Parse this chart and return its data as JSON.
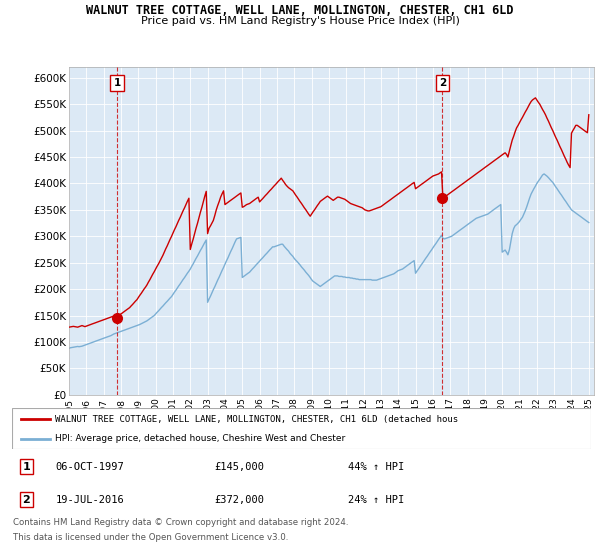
{
  "title": "WALNUT TREE COTTAGE, WELL LANE, MOLLINGTON, CHESTER, CH1 6LD",
  "subtitle": "Price paid vs. HM Land Registry's House Price Index (HPI)",
  "ylim": [
    0,
    620000
  ],
  "yticks": [
    0,
    50000,
    100000,
    150000,
    200000,
    250000,
    300000,
    350000,
    400000,
    450000,
    500000,
    550000,
    600000
  ],
  "ytick_labels": [
    "£0",
    "£50K",
    "£100K",
    "£150K",
    "£200K",
    "£250K",
    "£300K",
    "£350K",
    "£400K",
    "£450K",
    "£500K",
    "£550K",
    "£600K"
  ],
  "sale1_date": 1997.77,
  "sale1_price": 145000,
  "sale1_label": "1",
  "sale2_date": 2016.55,
  "sale2_price": 372000,
  "sale2_label": "2",
  "legend_entry1": "WALNUT TREE COTTAGE, WELL LANE, MOLLINGTON, CHESTER, CH1 6LD (detached hous",
  "legend_entry2": "HPI: Average price, detached house, Cheshire West and Chester",
  "table_row1": [
    "1",
    "06-OCT-1997",
    "£145,000",
    "44% ↑ HPI"
  ],
  "table_row2": [
    "2",
    "19-JUL-2016",
    "£372,000",
    "24% ↑ HPI"
  ],
  "footer1": "Contains HM Land Registry data © Crown copyright and database right 2024.",
  "footer2": "This data is licensed under the Open Government Licence v3.0.",
  "red_color": "#cc0000",
  "blue_color": "#7bafd4",
  "bg_color": "#dce9f5",
  "hpi_x": [
    1995.0,
    1995.08,
    1995.17,
    1995.25,
    1995.33,
    1995.42,
    1995.5,
    1995.58,
    1995.67,
    1995.75,
    1995.83,
    1995.92,
    1996.0,
    1996.08,
    1996.17,
    1996.25,
    1996.33,
    1996.42,
    1996.5,
    1996.58,
    1996.67,
    1996.75,
    1996.83,
    1996.92,
    1997.0,
    1997.08,
    1997.17,
    1997.25,
    1997.33,
    1997.42,
    1997.5,
    1997.58,
    1997.67,
    1997.75,
    1997.83,
    1997.92,
    1998.0,
    1998.08,
    1998.17,
    1998.25,
    1998.33,
    1998.42,
    1998.5,
    1998.58,
    1998.67,
    1998.75,
    1998.83,
    1998.92,
    1999.0,
    1999.08,
    1999.17,
    1999.25,
    1999.33,
    1999.42,
    1999.5,
    1999.58,
    1999.67,
    1999.75,
    1999.83,
    1999.92,
    2000.0,
    2000.08,
    2000.17,
    2000.25,
    2000.33,
    2000.42,
    2000.5,
    2000.58,
    2000.67,
    2000.75,
    2000.83,
    2000.92,
    2001.0,
    2001.08,
    2001.17,
    2001.25,
    2001.33,
    2001.42,
    2001.5,
    2001.58,
    2001.67,
    2001.75,
    2001.83,
    2001.92,
    2002.0,
    2002.08,
    2002.17,
    2002.25,
    2002.33,
    2002.42,
    2002.5,
    2002.58,
    2002.67,
    2002.75,
    2002.83,
    2002.92,
    2003.0,
    2003.08,
    2003.17,
    2003.25,
    2003.33,
    2003.42,
    2003.5,
    2003.58,
    2003.67,
    2003.75,
    2003.83,
    2003.92,
    2004.0,
    2004.08,
    2004.17,
    2004.25,
    2004.33,
    2004.42,
    2004.5,
    2004.58,
    2004.67,
    2004.75,
    2004.83,
    2004.92,
    2005.0,
    2005.08,
    2005.17,
    2005.25,
    2005.33,
    2005.42,
    2005.5,
    2005.58,
    2005.67,
    2005.75,
    2005.83,
    2005.92,
    2006.0,
    2006.08,
    2006.17,
    2006.25,
    2006.33,
    2006.42,
    2006.5,
    2006.58,
    2006.67,
    2006.75,
    2006.83,
    2006.92,
    2007.0,
    2007.08,
    2007.17,
    2007.25,
    2007.33,
    2007.42,
    2007.5,
    2007.58,
    2007.67,
    2007.75,
    2007.83,
    2007.92,
    2008.0,
    2008.08,
    2008.17,
    2008.25,
    2008.33,
    2008.42,
    2008.5,
    2008.58,
    2008.67,
    2008.75,
    2008.83,
    2008.92,
    2009.0,
    2009.08,
    2009.17,
    2009.25,
    2009.33,
    2009.42,
    2009.5,
    2009.58,
    2009.67,
    2009.75,
    2009.83,
    2009.92,
    2010.0,
    2010.08,
    2010.17,
    2010.25,
    2010.33,
    2010.42,
    2010.5,
    2010.58,
    2010.67,
    2010.75,
    2010.83,
    2010.92,
    2011.0,
    2011.08,
    2011.17,
    2011.25,
    2011.33,
    2011.42,
    2011.5,
    2011.58,
    2011.67,
    2011.75,
    2011.83,
    2011.92,
    2012.0,
    2012.08,
    2012.17,
    2012.25,
    2012.33,
    2012.42,
    2012.5,
    2012.58,
    2012.67,
    2012.75,
    2012.83,
    2012.92,
    2013.0,
    2013.08,
    2013.17,
    2013.25,
    2013.33,
    2013.42,
    2013.5,
    2013.58,
    2013.67,
    2013.75,
    2013.83,
    2013.92,
    2014.0,
    2014.08,
    2014.17,
    2014.25,
    2014.33,
    2014.42,
    2014.5,
    2014.58,
    2014.67,
    2014.75,
    2014.83,
    2014.92,
    2015.0,
    2015.08,
    2015.17,
    2015.25,
    2015.33,
    2015.42,
    2015.5,
    2015.58,
    2015.67,
    2015.75,
    2015.83,
    2015.92,
    2016.0,
    2016.08,
    2016.17,
    2016.25,
    2016.33,
    2016.42,
    2016.5,
    2016.58,
    2016.67,
    2016.75,
    2016.83,
    2016.92,
    2017.0,
    2017.08,
    2017.17,
    2017.25,
    2017.33,
    2017.42,
    2017.5,
    2017.58,
    2017.67,
    2017.75,
    2017.83,
    2017.92,
    2018.0,
    2018.08,
    2018.17,
    2018.25,
    2018.33,
    2018.42,
    2018.5,
    2018.58,
    2018.67,
    2018.75,
    2018.83,
    2018.92,
    2019.0,
    2019.08,
    2019.17,
    2019.25,
    2019.33,
    2019.42,
    2019.5,
    2019.58,
    2019.67,
    2019.75,
    2019.83,
    2019.92,
    2020.0,
    2020.08,
    2020.17,
    2020.25,
    2020.33,
    2020.42,
    2020.5,
    2020.58,
    2020.67,
    2020.75,
    2020.83,
    2020.92,
    2021.0,
    2021.08,
    2021.17,
    2021.25,
    2021.33,
    2021.42,
    2021.5,
    2021.58,
    2021.67,
    2021.75,
    2021.83,
    2021.92,
    2022.0,
    2022.08,
    2022.17,
    2022.25,
    2022.33,
    2022.42,
    2022.5,
    2022.58,
    2022.67,
    2022.75,
    2022.83,
    2022.92,
    2023.0,
    2023.08,
    2023.17,
    2023.25,
    2023.33,
    2023.42,
    2023.5,
    2023.58,
    2023.67,
    2023.75,
    2023.83,
    2023.92,
    2024.0,
    2024.08,
    2024.17,
    2024.25,
    2024.33,
    2024.42,
    2024.5,
    2024.58,
    2024.67,
    2024.75,
    2024.83,
    2024.92,
    2025.0
  ],
  "hpi_y": [
    88000,
    89000,
    89500,
    90000,
    90500,
    91000,
    91500,
    91000,
    91500,
    92000,
    93000,
    94000,
    95000,
    96000,
    97000,
    98000,
    99000,
    100000,
    101000,
    102000,
    103000,
    104000,
    105000,
    106000,
    107000,
    108000,
    109000,
    110000,
    111000,
    112000,
    113500,
    115000,
    116000,
    117000,
    118000,
    119000,
    120000,
    121000,
    122000,
    123000,
    124000,
    125000,
    126000,
    127000,
    128000,
    129000,
    130000,
    131000,
    132000,
    133000,
    134500,
    136000,
    137000,
    138500,
    140000,
    142000,
    144000,
    146000,
    148000,
    150000,
    153000,
    156000,
    159000,
    162000,
    165000,
    168000,
    171000,
    174000,
    177000,
    180000,
    183000,
    186000,
    190000,
    194000,
    198000,
    202000,
    206000,
    210000,
    214000,
    218000,
    222000,
    226000,
    230000,
    234000,
    238000,
    243000,
    248000,
    253000,
    258000,
    263000,
    268000,
    273000,
    278000,
    283000,
    288000,
    293000,
    175000,
    181000,
    187000,
    193000,
    199000,
    205000,
    211000,
    217000,
    223000,
    229000,
    235000,
    241000,
    247000,
    253000,
    259000,
    265000,
    271000,
    277000,
    283000,
    289000,
    295000,
    296000,
    297000,
    298000,
    222000,
    224000,
    226000,
    228000,
    230000,
    232000,
    235000,
    238000,
    241000,
    244000,
    247000,
    250000,
    253000,
    256000,
    259000,
    262000,
    265000,
    268000,
    271000,
    274000,
    277000,
    280000,
    280000,
    281000,
    282000,
    283000,
    284000,
    285000,
    285000,
    281000,
    278000,
    275000,
    272000,
    268000,
    265000,
    262000,
    258000,
    255000,
    252000,
    249000,
    246000,
    242000,
    239000,
    236000,
    232000,
    229000,
    226000,
    222000,
    218000,
    215000,
    213000,
    211000,
    209000,
    207000,
    205000,
    207000,
    209000,
    211000,
    213000,
    215000,
    217000,
    219000,
    221000,
    223000,
    225000,
    225000,
    225000,
    224000,
    224000,
    224000,
    223000,
    223000,
    222000,
    222000,
    222000,
    221000,
    221000,
    220000,
    220000,
    219000,
    219000,
    218000,
    218000,
    218000,
    218000,
    218000,
    218000,
    218000,
    218000,
    218000,
    217000,
    217000,
    217000,
    217000,
    218000,
    219000,
    220000,
    221000,
    222000,
    223000,
    224000,
    225000,
    226000,
    227000,
    228000,
    229000,
    231000,
    233000,
    235000,
    236000,
    237000,
    238000,
    240000,
    242000,
    244000,
    246000,
    248000,
    250000,
    252000,
    254000,
    230000,
    234000,
    238000,
    242000,
    246000,
    250000,
    254000,
    258000,
    262000,
    266000,
    270000,
    274000,
    278000,
    282000,
    286000,
    290000,
    294000,
    298000,
    302000,
    296000,
    295000,
    296000,
    297000,
    298000,
    299000,
    300000,
    302000,
    304000,
    306000,
    308000,
    310000,
    312000,
    314000,
    316000,
    318000,
    320000,
    322000,
    324000,
    326000,
    328000,
    330000,
    332000,
    334000,
    335000,
    336000,
    337000,
    338000,
    339000,
    340000,
    341000,
    342000,
    344000,
    346000,
    348000,
    350000,
    352000,
    354000,
    356000,
    358000,
    360000,
    270000,
    272000,
    274000,
    270000,
    265000,
    275000,
    290000,
    305000,
    315000,
    320000,
    322000,
    325000,
    328000,
    332000,
    336000,
    342000,
    348000,
    356000,
    364000,
    372000,
    380000,
    385000,
    390000,
    395000,
    400000,
    404000,
    408000,
    412000,
    416000,
    418000,
    416000,
    414000,
    411000,
    408000,
    405000,
    402000,
    398000,
    394000,
    390000,
    386000,
    382000,
    378000,
    374000,
    370000,
    366000,
    362000,
    358000,
    354000,
    350000,
    348000,
    346000,
    344000,
    342000,
    340000,
    338000,
    336000,
    334000,
    332000,
    330000,
    328000,
    326000
  ],
  "red_x": [
    1995.0,
    1995.08,
    1995.17,
    1995.25,
    1995.33,
    1995.42,
    1995.5,
    1995.58,
    1995.67,
    1995.75,
    1995.83,
    1995.92,
    1996.0,
    1996.08,
    1996.17,
    1996.25,
    1996.33,
    1996.42,
    1996.5,
    1996.58,
    1996.67,
    1996.75,
    1996.83,
    1996.92,
    1997.0,
    1997.08,
    1997.17,
    1997.25,
    1997.33,
    1997.42,
    1997.5,
    1997.58,
    1997.67,
    1997.75,
    1997.83,
    1997.92,
    1998.0,
    1998.08,
    1998.17,
    1998.25,
    1998.33,
    1998.42,
    1998.5,
    1998.58,
    1998.67,
    1998.75,
    1998.83,
    1998.92,
    1999.0,
    1999.08,
    1999.17,
    1999.25,
    1999.33,
    1999.42,
    1999.5,
    1999.58,
    1999.67,
    1999.75,
    1999.83,
    1999.92,
    2000.0,
    2000.08,
    2000.17,
    2000.25,
    2000.33,
    2000.42,
    2000.5,
    2000.58,
    2000.67,
    2000.75,
    2000.83,
    2000.92,
    2001.0,
    2001.08,
    2001.17,
    2001.25,
    2001.33,
    2001.42,
    2001.5,
    2001.58,
    2001.67,
    2001.75,
    2001.83,
    2001.92,
    2002.0,
    2002.08,
    2002.17,
    2002.25,
    2002.33,
    2002.42,
    2002.5,
    2002.58,
    2002.67,
    2002.75,
    2002.83,
    2002.92,
    2003.0,
    2003.08,
    2003.17,
    2003.25,
    2003.33,
    2003.42,
    2003.5,
    2003.58,
    2003.67,
    2003.75,
    2003.83,
    2003.92,
    2004.0,
    2004.08,
    2004.17,
    2004.25,
    2004.33,
    2004.42,
    2004.5,
    2004.58,
    2004.67,
    2004.75,
    2004.83,
    2004.92,
    2005.0,
    2005.08,
    2005.17,
    2005.25,
    2005.33,
    2005.42,
    2005.5,
    2005.58,
    2005.67,
    2005.75,
    2005.83,
    2005.92,
    2006.0,
    2006.08,
    2006.17,
    2006.25,
    2006.33,
    2006.42,
    2006.5,
    2006.58,
    2006.67,
    2006.75,
    2006.83,
    2006.92,
    2007.0,
    2007.08,
    2007.17,
    2007.25,
    2007.33,
    2007.42,
    2007.5,
    2007.58,
    2007.67,
    2007.75,
    2007.83,
    2007.92,
    2008.0,
    2008.08,
    2008.17,
    2008.25,
    2008.33,
    2008.42,
    2008.5,
    2008.58,
    2008.67,
    2008.75,
    2008.83,
    2008.92,
    2009.0,
    2009.08,
    2009.17,
    2009.25,
    2009.33,
    2009.42,
    2009.5,
    2009.58,
    2009.67,
    2009.75,
    2009.83,
    2009.92,
    2010.0,
    2010.08,
    2010.17,
    2010.25,
    2010.33,
    2010.42,
    2010.5,
    2010.58,
    2010.67,
    2010.75,
    2010.83,
    2010.92,
    2011.0,
    2011.08,
    2011.17,
    2011.25,
    2011.33,
    2011.42,
    2011.5,
    2011.58,
    2011.67,
    2011.75,
    2011.83,
    2011.92,
    2012.0,
    2012.08,
    2012.17,
    2012.25,
    2012.33,
    2012.42,
    2012.5,
    2012.58,
    2012.67,
    2012.75,
    2012.83,
    2012.92,
    2013.0,
    2013.08,
    2013.17,
    2013.25,
    2013.33,
    2013.42,
    2013.5,
    2013.58,
    2013.67,
    2013.75,
    2013.83,
    2013.92,
    2014.0,
    2014.08,
    2014.17,
    2014.25,
    2014.33,
    2014.42,
    2014.5,
    2014.58,
    2014.67,
    2014.75,
    2014.83,
    2014.92,
    2015.0,
    2015.08,
    2015.17,
    2015.25,
    2015.33,
    2015.42,
    2015.5,
    2015.58,
    2015.67,
    2015.75,
    2015.83,
    2015.92,
    2016.0,
    2016.08,
    2016.17,
    2016.25,
    2016.33,
    2016.42,
    2016.5,
    2016.58,
    2016.67,
    2016.75,
    2016.83,
    2016.92,
    2017.0,
    2017.08,
    2017.17,
    2017.25,
    2017.33,
    2017.42,
    2017.5,
    2017.58,
    2017.67,
    2017.75,
    2017.83,
    2017.92,
    2018.0,
    2018.08,
    2018.17,
    2018.25,
    2018.33,
    2018.42,
    2018.5,
    2018.58,
    2018.67,
    2018.75,
    2018.83,
    2018.92,
    2019.0,
    2019.08,
    2019.17,
    2019.25,
    2019.33,
    2019.42,
    2019.5,
    2019.58,
    2019.67,
    2019.75,
    2019.83,
    2019.92,
    2020.0,
    2020.08,
    2020.17,
    2020.25,
    2020.33,
    2020.42,
    2020.5,
    2020.58,
    2020.67,
    2020.75,
    2020.83,
    2020.92,
    2021.0,
    2021.08,
    2021.17,
    2021.25,
    2021.33,
    2021.42,
    2021.5,
    2021.58,
    2021.67,
    2021.75,
    2021.83,
    2021.92,
    2022.0,
    2022.08,
    2022.17,
    2022.25,
    2022.33,
    2022.42,
    2022.5,
    2022.58,
    2022.67,
    2022.75,
    2022.83,
    2022.92,
    2023.0,
    2023.08,
    2023.17,
    2023.25,
    2023.33,
    2023.42,
    2023.5,
    2023.58,
    2023.67,
    2023.75,
    2023.83,
    2023.92,
    2024.0,
    2024.08,
    2024.17,
    2024.25,
    2024.33,
    2024.42,
    2024.5,
    2024.58,
    2024.67,
    2024.75,
    2024.83,
    2024.92,
    2025.0
  ],
  "red_y": [
    128000,
    128500,
    129000,
    129500,
    129000,
    128500,
    128000,
    129000,
    130000,
    131000,
    130000,
    129000,
    130000,
    131000,
    132000,
    133000,
    134000,
    135000,
    136000,
    137000,
    138000,
    139000,
    140000,
    141000,
    142000,
    143000,
    144000,
    145000,
    146000,
    147000,
    148000,
    148500,
    149000,
    150000,
    151000,
    152000,
    153000,
    155000,
    157000,
    159000,
    161000,
    163000,
    165000,
    168000,
    171000,
    174000,
    177000,
    180000,
    184000,
    188000,
    192000,
    196000,
    200000,
    204000,
    208000,
    213000,
    218000,
    223000,
    228000,
    233000,
    238000,
    243000,
    248000,
    253000,
    258000,
    264000,
    270000,
    276000,
    282000,
    288000,
    294000,
    300000,
    306000,
    312000,
    318000,
    324000,
    330000,
    336000,
    342000,
    348000,
    354000,
    360000,
    366000,
    372000,
    275000,
    285000,
    295000,
    305000,
    315000,
    325000,
    335000,
    345000,
    355000,
    365000,
    375000,
    385000,
    305000,
    315000,
    320000,
    325000,
    330000,
    340000,
    350000,
    358000,
    366000,
    374000,
    380000,
    386000,
    360000,
    362000,
    364000,
    366000,
    368000,
    370000,
    372000,
    374000,
    376000,
    378000,
    380000,
    382000,
    355000,
    356000,
    358000,
    360000,
    361000,
    362000,
    364000,
    366000,
    368000,
    370000,
    372000,
    374000,
    365000,
    368000,
    371000,
    374000,
    377000,
    380000,
    383000,
    386000,
    389000,
    392000,
    395000,
    398000,
    401000,
    404000,
    407000,
    410000,
    406000,
    402000,
    398000,
    395000,
    392000,
    390000,
    388000,
    386000,
    382000,
    378000,
    374000,
    370000,
    366000,
    362000,
    358000,
    354000,
    350000,
    346000,
    342000,
    338000,
    342000,
    346000,
    350000,
    354000,
    358000,
    362000,
    366000,
    368000,
    370000,
    372000,
    374000,
    376000,
    374000,
    372000,
    370000,
    368000,
    370000,
    372000,
    374000,
    374000,
    373000,
    372000,
    371000,
    370000,
    368000,
    366000,
    364000,
    362000,
    361000,
    360000,
    359000,
    358000,
    357000,
    356000,
    355000,
    354000,
    352000,
    350000,
    349000,
    348000,
    348000,
    349000,
    350000,
    351000,
    352000,
    353000,
    354000,
    355000,
    356000,
    358000,
    360000,
    362000,
    364000,
    366000,
    368000,
    370000,
    372000,
    374000,
    376000,
    378000,
    380000,
    382000,
    384000,
    386000,
    388000,
    390000,
    392000,
    394000,
    396000,
    398000,
    400000,
    402000,
    390000,
    392000,
    394000,
    396000,
    398000,
    400000,
    402000,
    404000,
    406000,
    408000,
    410000,
    412000,
    414000,
    415000,
    416000,
    417000,
    418000,
    420000,
    422000,
    372000,
    374000,
    376000,
    378000,
    380000,
    382000,
    384000,
    386000,
    388000,
    390000,
    392000,
    394000,
    396000,
    398000,
    400000,
    402000,
    404000,
    406000,
    408000,
    410000,
    412000,
    414000,
    416000,
    418000,
    420000,
    422000,
    424000,
    426000,
    428000,
    430000,
    432000,
    434000,
    436000,
    438000,
    440000,
    442000,
    444000,
    446000,
    448000,
    450000,
    452000,
    454000,
    456000,
    458000,
    455000,
    450000,
    462000,
    472000,
    482000,
    490000,
    498000,
    505000,
    510000,
    515000,
    520000,
    525000,
    530000,
    535000,
    540000,
    545000,
    550000,
    555000,
    558000,
    560000,
    562000,
    558000,
    554000,
    550000,
    545000,
    540000,
    535000,
    530000,
    524000,
    518000,
    512000,
    506000,
    500000,
    494000,
    488000,
    482000,
    476000,
    470000,
    464000,
    458000,
    452000,
    446000,
    440000,
    435000,
    430000,
    495000,
    500000,
    505000,
    510000,
    510000,
    508000,
    506000,
    504000,
    502000,
    500000,
    498000,
    496000,
    530000
  ]
}
